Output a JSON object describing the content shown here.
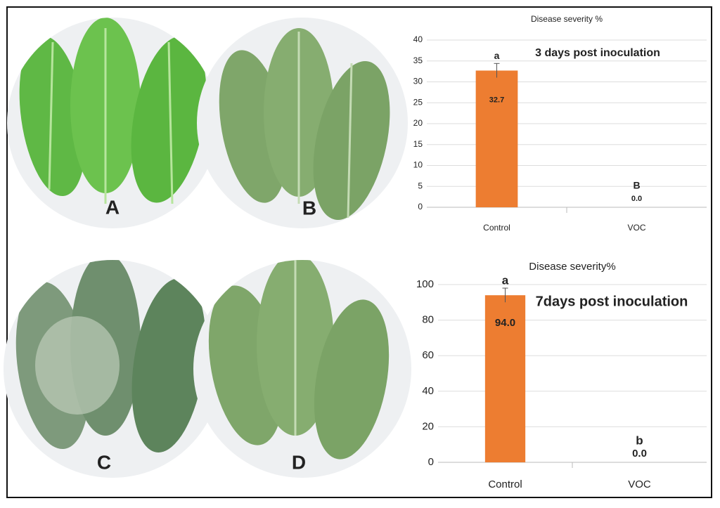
{
  "panels": [
    "A",
    "B",
    "C",
    "D"
  ],
  "chart_data": [
    {
      "type": "bar",
      "title": "Disease severity %",
      "annotation": "3 days post inoculation",
      "categories": [
        "Control",
        "VOC"
      ],
      "values": [
        32.7,
        0.0
      ],
      "value_labels": [
        "32.7",
        "0.0"
      ],
      "errors": [
        1.7,
        null
      ],
      "sig_letters": [
        "a",
        "B"
      ],
      "color": "#ed7d31",
      "ylim": [
        0,
        40
      ],
      "yticks": [
        0,
        5,
        10,
        15,
        20,
        25,
        30,
        35,
        40
      ],
      "grid": true
    },
    {
      "type": "bar",
      "title": "Disease severity%",
      "annotation": "7days post inoculation",
      "categories": [
        "Control",
        "VOC"
      ],
      "values": [
        94.0,
        0.0
      ],
      "value_labels": [
        "94.0",
        "0.0"
      ],
      "errors": [
        4,
        null
      ],
      "sig_letters": [
        "a",
        "b"
      ],
      "color": "#ed7d31",
      "ylim": [
        0,
        100
      ],
      "yticks": [
        0,
        20,
        40,
        60,
        80,
        100
      ],
      "grid": true
    }
  ]
}
